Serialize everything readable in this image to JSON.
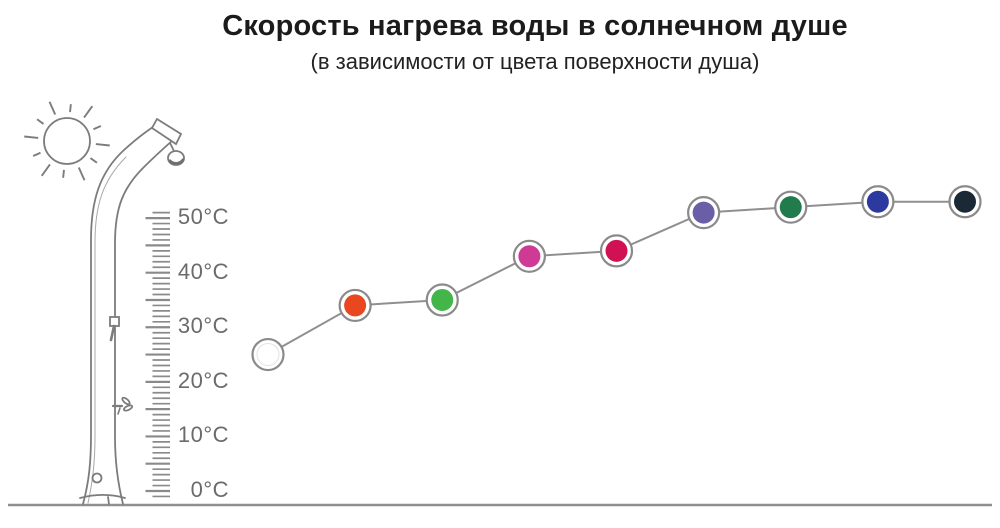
{
  "header": {
    "title": "Скорость нагрева воды в солнечном душе",
    "subtitle": "(в зависимости от цвета поверхности душа)"
  },
  "axis": {
    "unit": "°C",
    "tick_labels": [
      "50°C",
      "40°C",
      "30°C",
      "20°C",
      "10°C",
      "0°C"
    ],
    "tick_values": [
      50,
      40,
      30,
      20,
      10,
      0
    ]
  },
  "icons": {
    "sun": "sun-icon",
    "shower": "solar-shower-icon",
    "ruler": "temperature-scale-icon"
  },
  "chart_data": {
    "type": "line",
    "title": "Скорость нагрева воды в солнечном душе",
    "subtitle": "(в зависимости от цвета поверхности душа)",
    "xlabel": "",
    "ylabel": "",
    "ylim": [
      0,
      55
    ],
    "grid": false,
    "legend": false,
    "categories": [
      "white",
      "orange",
      "green",
      "magenta",
      "crimson",
      "violet",
      "dark-green",
      "dark-blue",
      "black"
    ],
    "values": [
      25,
      34,
      35,
      43,
      44,
      51,
      52,
      53,
      53
    ],
    "point_colors": [
      "#FFFFFF",
      "#E8471F",
      "#43B649",
      "#CE3A94",
      "#D01153",
      "#6A5EA7",
      "#217B4D",
      "#2C3AA0",
      "#1B2936"
    ],
    "line_color": "#8F8F8F",
    "marker_ring_color": "#8A8A8A"
  }
}
